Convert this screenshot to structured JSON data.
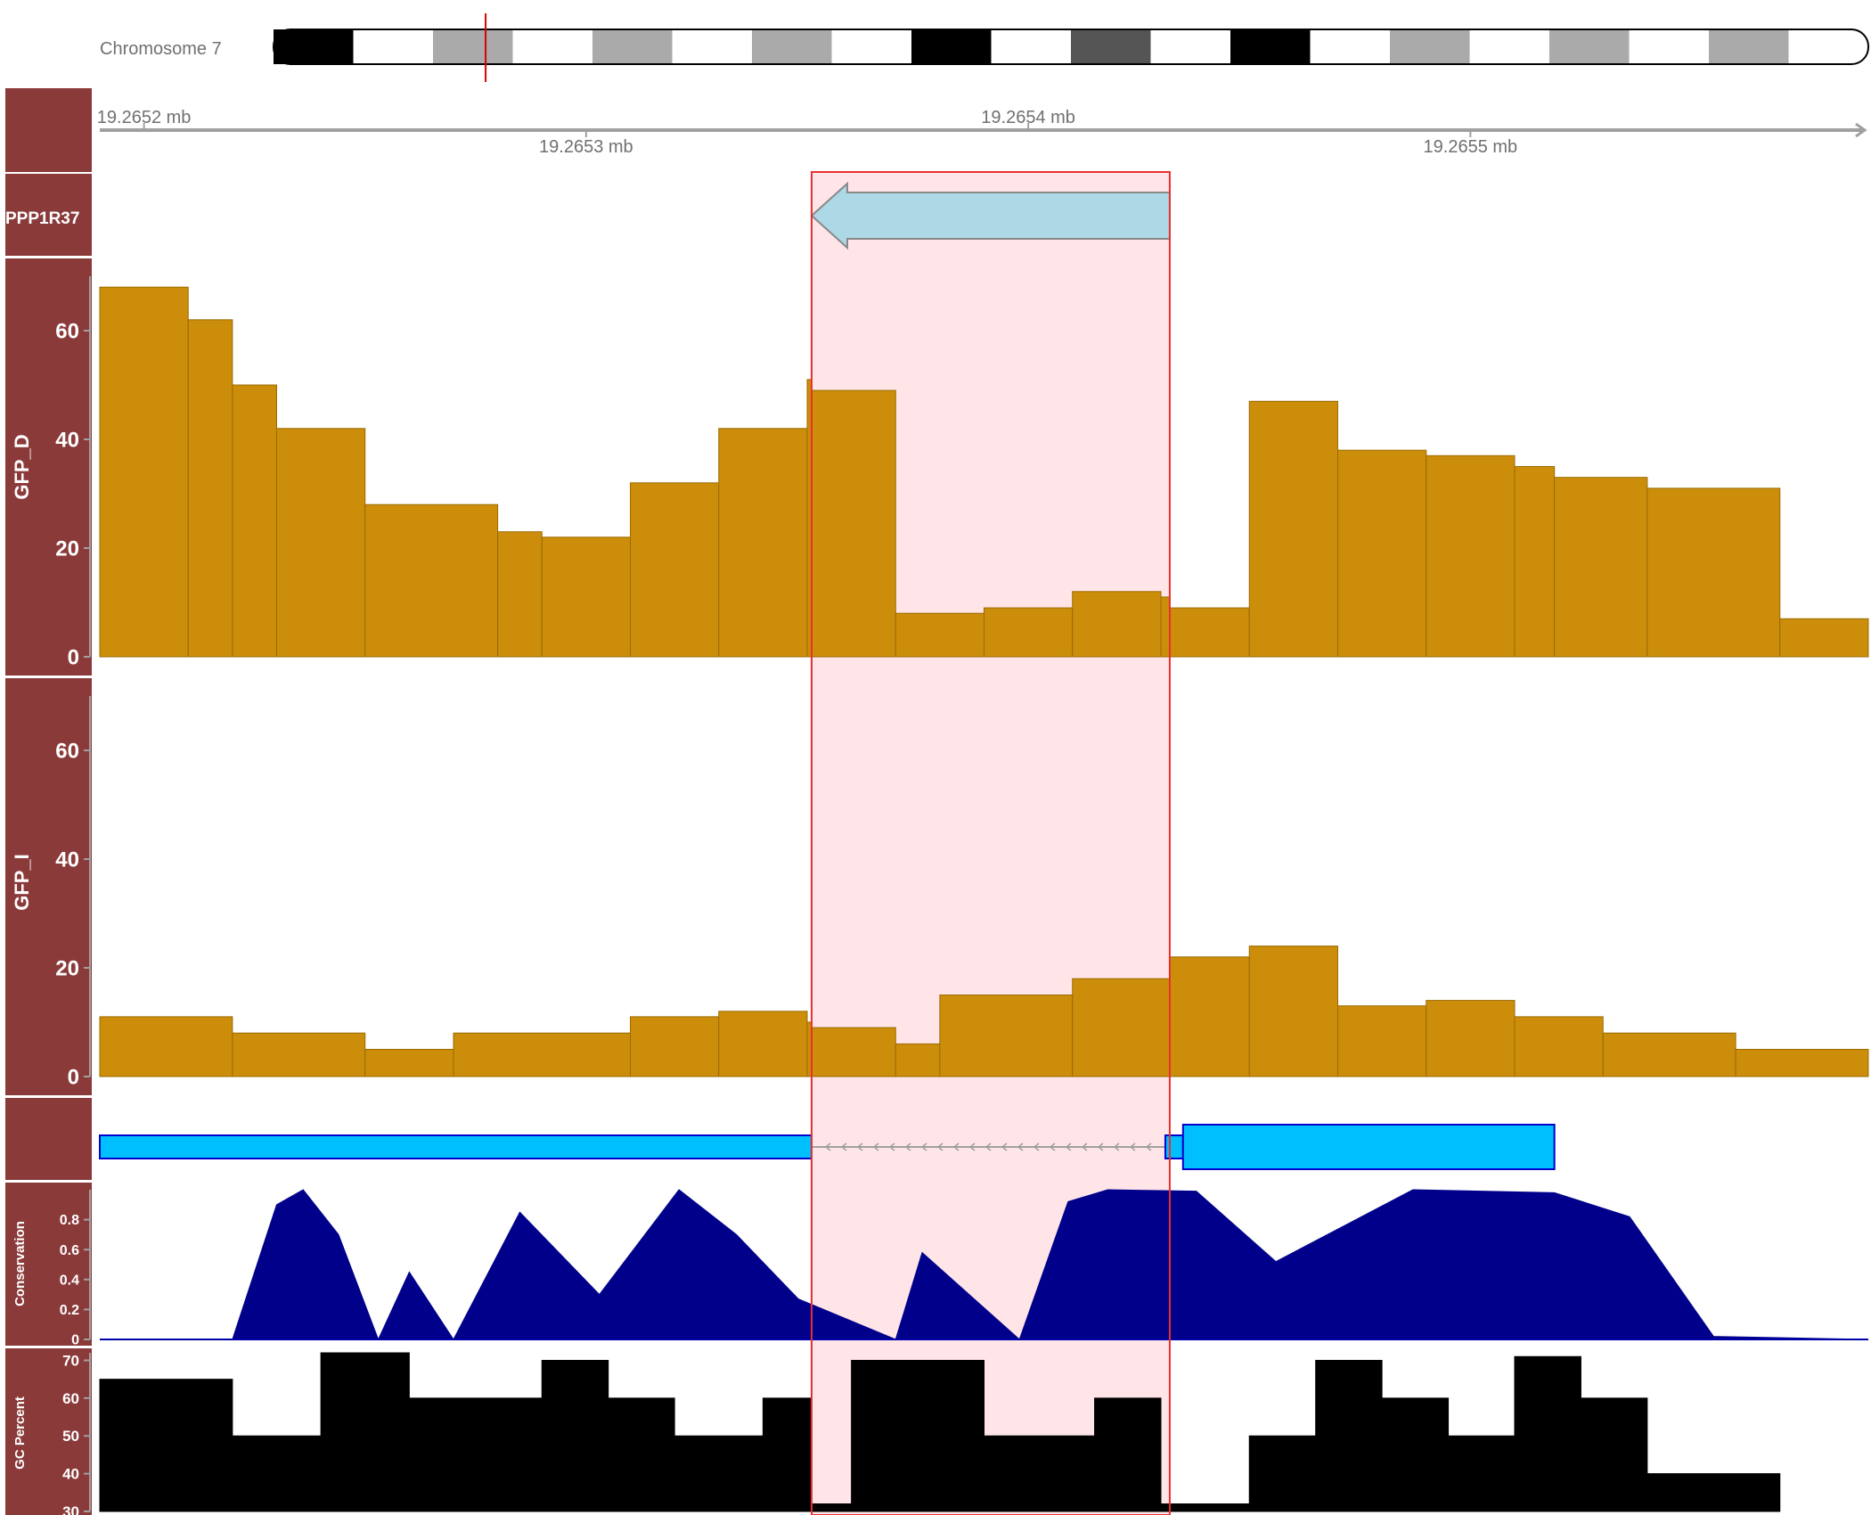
{
  "ideogram": {
    "label": "Chromosome 7",
    "bands": [
      "black",
      "white",
      "grey",
      "white",
      "grey",
      "white",
      "grey",
      "white",
      "black",
      "white",
      "darkgrey",
      "white",
      "black",
      "white",
      "grey",
      "white",
      "grey",
      "white",
      "grey",
      "white"
    ],
    "marker_position_fraction": 0.133,
    "colors": {
      "black": "#000000",
      "white": "#ffffff",
      "grey": "#aaaaaa",
      "darkgrey": "#555555",
      "marker": "#dd0000"
    }
  },
  "axis": {
    "domain_mb": [
      19.26519,
      19.26559
    ],
    "ticks_top": [
      {
        "value": 19.2652,
        "label": "19.2652 mb"
      },
      {
        "value": 19.2654,
        "label": "19.2654 mb"
      }
    ],
    "ticks_bottom": [
      {
        "value": 19.2653,
        "label": "19.2653 mb"
      },
      {
        "value": 19.2655,
        "label": "19.2655 mb"
      }
    ]
  },
  "highlight": {
    "start_mb": 19.265351,
    "end_mb": 19.265432,
    "fill": "#ffe4e8",
    "stroke": "#e83030"
  },
  "tracks": {
    "gene_label": {
      "title": "PPP1R37",
      "strand": "-",
      "start_mb": 19.265351,
      "end_mb": 19.265432,
      "fill": "#add8e6"
    },
    "gfp_d": {
      "title": "GFP_D",
      "ylim": [
        0,
        70
      ],
      "ticks": [
        "0",
        "20",
        "40",
        "60"
      ]
    },
    "gfp_i": {
      "title": "GFP_I",
      "ylim": [
        0,
        70
      ],
      "ticks": [
        "0",
        "20",
        "40",
        "60"
      ]
    },
    "gene_model": {
      "title": "",
      "exons": [
        {
          "start_mb": 19.26519,
          "end_mb": 19.265351,
          "type": "utr"
        },
        {
          "start_mb": 19.265431,
          "end_mb": 19.265435,
          "type": "utr"
        },
        {
          "start_mb": 19.265435,
          "end_mb": 19.265519,
          "type": "cds"
        }
      ],
      "intron": {
        "start_mb": 19.265351,
        "end_mb": 19.265431
      },
      "fill": "#00bfff",
      "stroke": "#0000cd"
    },
    "conservation": {
      "title": "Conservation",
      "ylim": [
        0,
        1.0
      ],
      "ticks": [
        "0",
        "0.2",
        "0.4",
        "0.6",
        "0.8"
      ],
      "fill": "#00008b"
    },
    "gc": {
      "title": "GC Percent",
      "ylim": [
        30,
        72
      ],
      "ticks": [
        "30",
        "40",
        "50",
        "60",
        "70"
      ],
      "fill": "#000000"
    }
  },
  "colors": {
    "panel": "#8b3a3a",
    "coverage": "#cc8e0a",
    "coverage_stroke": "#9a6a00",
    "axis": "#a0a0a0"
  },
  "chart_data": [
    {
      "type": "bar",
      "title": "GFP_D",
      "x_unit": "mb",
      "ylim": [
        0,
        70
      ],
      "series": [
        {
          "name": "GFP_D",
          "x": [
            19.26519,
            19.26521,
            19.26522,
            19.26523,
            19.26525,
            19.26528,
            19.26529,
            19.26531,
            19.26533,
            19.26535,
            19.265351,
            19.26537,
            19.26539,
            19.26541,
            19.26543,
            19.265432,
            19.26545,
            19.26547,
            19.26549,
            19.26551,
            19.265519,
            19.26554,
            19.26557,
            19.26559
          ],
          "values": [
            68,
            62,
            50,
            42,
            28,
            23,
            22,
            32,
            42,
            51,
            49,
            8,
            9,
            12,
            11,
            9,
            47,
            38,
            37,
            35,
            33,
            31,
            7,
            6
          ]
        }
      ]
    },
    {
      "type": "bar",
      "title": "GFP_I",
      "x_unit": "mb",
      "ylim": [
        0,
        70
      ],
      "series": [
        {
          "name": "GFP_I",
          "x": [
            19.26519,
            19.26522,
            19.26525,
            19.26527,
            19.26531,
            19.26533,
            19.26535,
            19.265351,
            19.26537,
            19.26538,
            19.26541,
            19.265432,
            19.26545,
            19.26547,
            19.26549,
            19.26551,
            19.26553,
            19.26556,
            19.26559
          ],
          "values": [
            11,
            8,
            5,
            8,
            11,
            12,
            10,
            9,
            6,
            15,
            18,
            22,
            24,
            13,
            14,
            11,
            8,
            5,
            4
          ]
        }
      ]
    },
    {
      "type": "area",
      "title": "Conservation",
      "x_unit": "mb",
      "ylim": [
        0,
        1.0
      ],
      "series": [
        {
          "name": "Conservation",
          "x": [
            19.26519,
            19.26522,
            19.26523,
            19.265236,
            19.265244,
            19.265253,
            19.26526,
            19.26527,
            19.265285,
            19.265303,
            19.265321,
            19.265334,
            19.265348,
            19.26537,
            19.265376,
            19.265398,
            19.265409,
            19.265418,
            19.265438,
            19.265456,
            19.265487,
            19.265519,
            19.265536,
            19.265555,
            19.26559
          ],
          "values": [
            0,
            0,
            0.9,
            1.0,
            0.7,
            0,
            0.45,
            0,
            0.85,
            0.3,
            1.0,
            0.7,
            0.27,
            0,
            0.58,
            0,
            0.92,
            1.0,
            0.99,
            0.52,
            1.0,
            0.98,
            0.82,
            0.02,
            0
          ]
        }
      ]
    },
    {
      "type": "bar",
      "title": "GC Percent",
      "x_unit": "mb",
      "ylim": [
        30,
        72
      ],
      "series": [
        {
          "name": "GC Percent",
          "x": [
            19.26519,
            19.26522,
            19.26524,
            19.26526,
            19.26529,
            19.265305,
            19.26532,
            19.26534,
            19.265351,
            19.26536,
            19.26539,
            19.265415,
            19.26543,
            19.26545,
            19.265465,
            19.26548,
            19.265495,
            19.26551,
            19.265525,
            19.26554,
            19.26557
          ],
          "values": [
            65,
            50,
            72,
            60,
            70,
            60,
            50,
            60,
            32,
            70,
            50,
            60,
            32,
            50,
            70,
            60,
            50,
            71,
            60,
            40,
            62
          ]
        }
      ]
    }
  ]
}
